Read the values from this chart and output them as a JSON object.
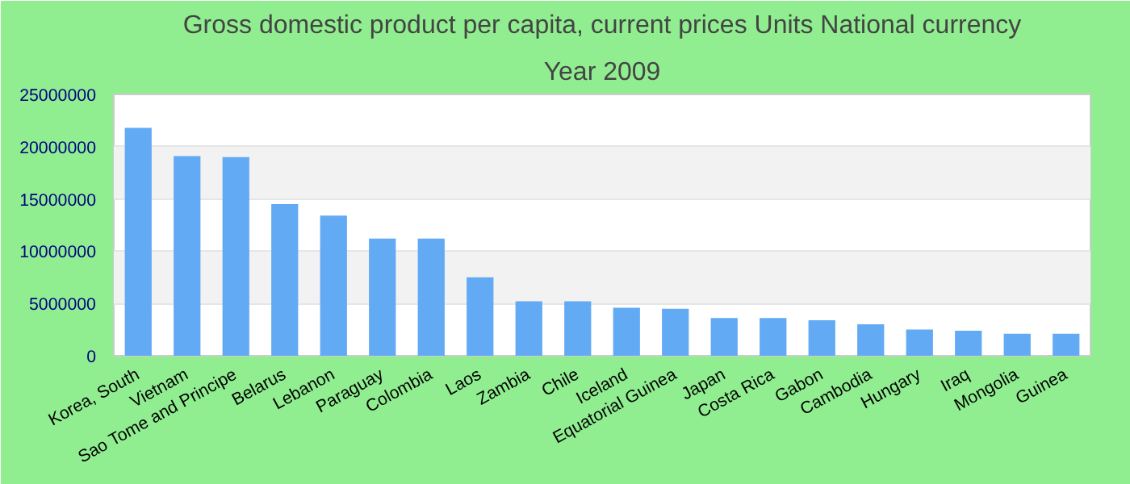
{
  "chart_data": {
    "type": "bar",
    "title": "Gross domestic product per capita, current prices Units National currency",
    "subtitle": "Year 2009",
    "categories": [
      "Korea, South",
      "Vietnam",
      "Sao Tome and Principe",
      "Belarus",
      "Lebanon",
      "Paraguay",
      "Colombia",
      "Laos",
      "Zambia",
      "Chile",
      "Iceland",
      "Equatorial Guinea",
      "Japan",
      "Costa Rica",
      "Gabon",
      "Cambodia",
      "Hungary",
      "Iraq",
      "Mongolia",
      "Guinea"
    ],
    "values": [
      21800000,
      19100000,
      19000000,
      14500000,
      13400000,
      11200000,
      11200000,
      7500000,
      5200000,
      5200000,
      4600000,
      4500000,
      3600000,
      3600000,
      3400000,
      3000000,
      2500000,
      2400000,
      2100000,
      2100000
    ],
    "color": "#63aaf5",
    "ylim": [
      0,
      25000000
    ],
    "yticks": [
      0,
      5000000,
      10000000,
      15000000,
      20000000,
      25000000
    ],
    "grid": "y"
  }
}
